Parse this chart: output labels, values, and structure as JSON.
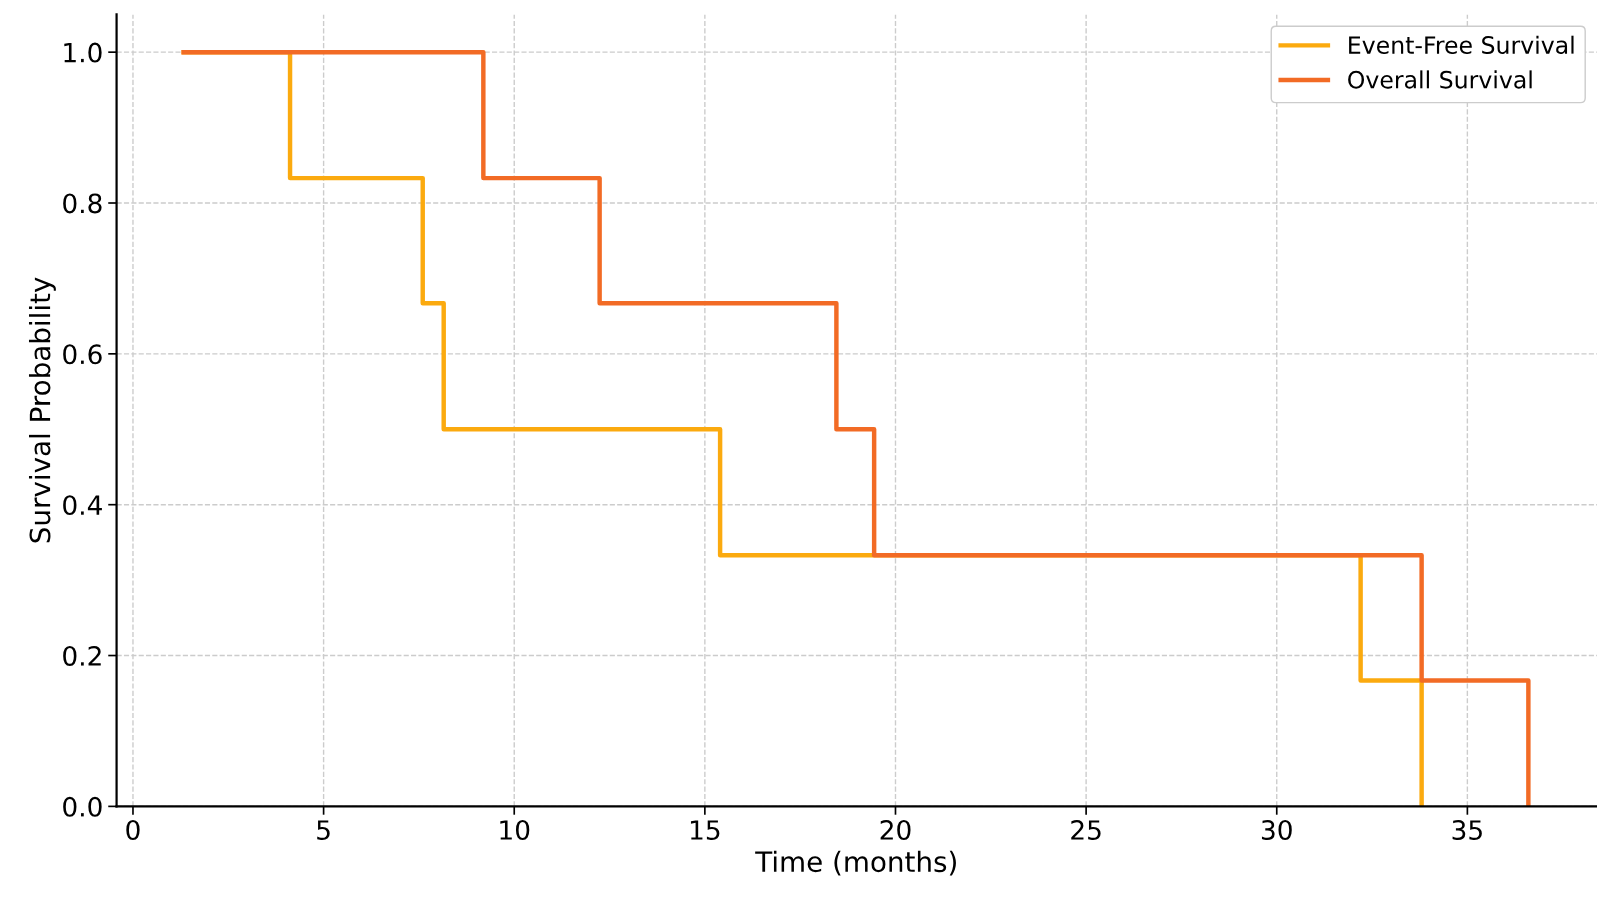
{
  "chart_data": {
    "type": "step",
    "xlabel": "Time (months)",
    "ylabel": "Survival Probability",
    "xlim": [
      -0.43,
      38.4
    ],
    "xticks": [
      0,
      5,
      10,
      15,
      20,
      25,
      30,
      35
    ],
    "ylim": [
      0,
      1.05
    ],
    "yticks": [
      {
        "value": 0,
        "label": "0.0"
      },
      {
        "value": 0.2,
        "label": "0.2"
      },
      {
        "value": 0.4,
        "label": "0.4"
      },
      {
        "value": 0.6,
        "label": "0.6"
      },
      {
        "value": 0.8,
        "label": "0.8"
      },
      {
        "value": 1.0,
        "label": "1.0"
      }
    ],
    "grid": true,
    "legend": "top right",
    "line_style": "solid",
    "marker": "none",
    "series": [
      {
        "name": "Event-Free Survival",
        "color": "#fbaa0f",
        "x": [
          1.33,
          4.12,
          7.6,
          8.15,
          15.4,
          32.2,
          33.8
        ],
        "values": [
          1.0,
          0.833,
          0.667,
          0.5,
          0.333,
          0.167,
          0.0
        ]
      },
      {
        "name": "Overall Survival",
        "color": "#f26b25",
        "x": [
          1.33,
          9.19,
          12.24,
          18.45,
          19.44,
          33.8,
          36.6
        ],
        "values": [
          1.0,
          0.833,
          0.667,
          0.5,
          0.333,
          0.167,
          0.0
        ]
      }
    ]
  }
}
